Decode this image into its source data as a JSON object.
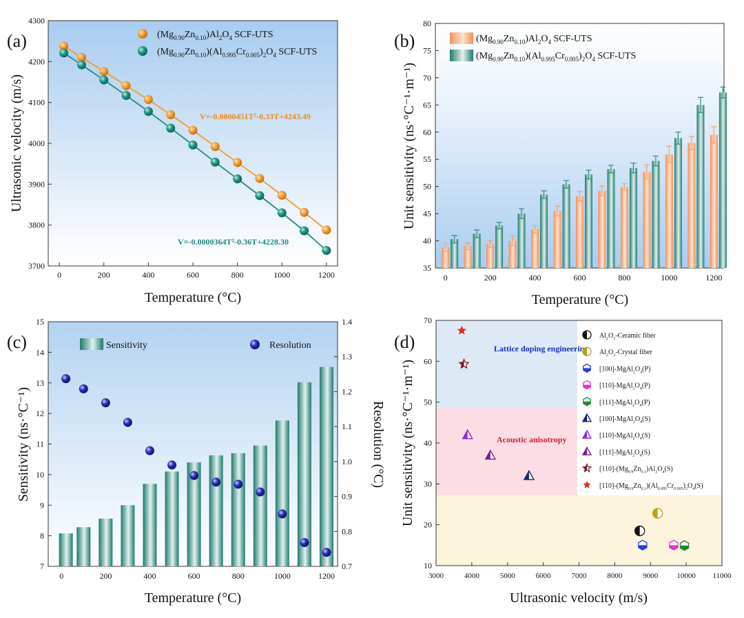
{
  "chart_data": [
    {
      "panel": "(a)",
      "type": "scatter",
      "xlabel": "Temperature (°C)",
      "ylabel": "Ultrasonic velocity (m/s)",
      "xlim": [
        -50,
        1250
      ],
      "ylim": [
        3700,
        4300
      ],
      "xticks": [
        0,
        200,
        400,
        600,
        800,
        1000,
        1200
      ],
      "yticks": [
        3700,
        3800,
        3900,
        4000,
        4100,
        4200,
        4300
      ],
      "legend": "top-right",
      "series": [
        {
          "name_main": "(Mg",
          "name_s1": "0.90",
          "name_m2": "Zn",
          "name_s2": "0.10",
          "name_m3": ")Al",
          "name_s3": "2",
          "name_m4": "O",
          "name_s4": "4",
          "name_m5": " SCF-UTS",
          "color": "#f39a2a",
          "x": [
            20,
            100,
            200,
            300,
            400,
            500,
            600,
            700,
            800,
            900,
            1000,
            1100,
            1200
          ],
          "y": [
            4238,
            4210,
            4176,
            4141,
            4107,
            4070,
            4032,
            3992,
            3953,
            3914,
            3873,
            3831,
            3788
          ],
          "fit": "V=-0.0000451T²-0.33T+4243.49"
        },
        {
          "name_main": "(Mg",
          "name_s1": "0.90",
          "name_m2": "Zn",
          "name_s2": "0.10",
          "name_m3": ")(Al",
          "name_s3": "0.995",
          "name_m4": "Cr",
          "name_s4": "0.005",
          "name_m5": ")",
          "name_s5": "2",
          "name_m6": "O",
          "name_s6": "4",
          "name_m7": " SCF-UTS",
          "color": "#1e8c80",
          "x": [
            20,
            100,
            200,
            300,
            400,
            500,
            600,
            700,
            800,
            900,
            1000,
            1100,
            1200
          ],
          "y": [
            4221,
            4192,
            4155,
            4117,
            4078,
            4037,
            3996,
            3954,
            3913,
            3872,
            3830,
            3786,
            3738
          ],
          "fit": "V=-0.0000364T²-0.36T+4228.30"
        }
      ]
    },
    {
      "panel": "(b)",
      "type": "bar",
      "xlabel": "Temperature (°C)",
      "ylabel": "Unit sensitivity (ns·°C⁻¹·m⁻¹)",
      "ylim": [
        35,
        80
      ],
      "xticks": [
        0,
        200,
        400,
        600,
        800,
        1000,
        1200
      ],
      "yticks": [
        35,
        40,
        45,
        50,
        55,
        60,
        65,
        70,
        75,
        80
      ],
      "legend": "top-left",
      "categories": [
        0,
        100,
        200,
        300,
        400,
        500,
        600,
        700,
        800,
        900,
        1000,
        1100,
        1200
      ],
      "series": [
        {
          "name_main": "(Mg",
          "name_s1": "0.90",
          "name_m2": "Zn",
          "name_s2": "0.10",
          "name_m3": ")Al",
          "name_s3": "2",
          "name_m4": "O",
          "name_s4": "4",
          "name_m5": " SCF-UTS",
          "color": "#f5a26a",
          "values": [
            38.8,
            39.0,
            39.4,
            40.0,
            42.1,
            45.5,
            48.2,
            49.2,
            49.9,
            52.7,
            55.9,
            58.0,
            59.5
          ],
          "errors": [
            0.8,
            0.6,
            0.6,
            0.9,
            0.7,
            0.9,
            0.9,
            0.9,
            0.6,
            1.3,
            1.5,
            1.2,
            1.5
          ]
        },
        {
          "name_main": "(Mg",
          "name_s1": "0.90",
          "name_m2": "Zn",
          "name_s2": "0.10",
          "name_m3": ")(Al",
          "name_s3": "0.995",
          "name_m4": "Cr",
          "name_s4": "0.005",
          "name_m5": ")",
          "name_s5": "2",
          "name_m6": "O",
          "name_s6": "4",
          "name_m7": " SCF-UTS",
          "color": "#2f8b7e",
          "values": [
            40.3,
            41.3,
            42.8,
            45.0,
            48.5,
            50.4,
            52.2,
            53.2,
            53.4,
            54.7,
            58.9,
            65.0,
            67.3
          ],
          "errors": [
            0.7,
            0.7,
            0.6,
            0.9,
            0.7,
            0.7,
            0.8,
            0.7,
            0.9,
            0.9,
            1.1,
            1.4,
            1.0
          ]
        }
      ]
    },
    {
      "panel": "(c)",
      "type": "bar",
      "xlabel": "Temperature (°C)",
      "ylabel": "Sensitivity (ns·°C⁻¹)",
      "y2label": "Resolution (°C)",
      "ylim": [
        7,
        15
      ],
      "y2lim": [
        0.7,
        1.4
      ],
      "xticks": [
        0,
        200,
        400,
        600,
        800,
        1000,
        1200
      ],
      "yticks": [
        7,
        8,
        9,
        10,
        11,
        12,
        13,
        14,
        15
      ],
      "y2ticks": [
        "0.7",
        "0.8",
        "0.9",
        "1.0",
        "1.1",
        "1.2",
        "1.3",
        "1.4"
      ],
      "legend": "top",
      "categories": [
        20,
        100,
        200,
        300,
        400,
        500,
        600,
        700,
        800,
        900,
        1000,
        1100,
        1200
      ],
      "series": [
        {
          "name": "Sensitivity",
          "color": "#2f8b7e",
          "values": [
            8.08,
            8.28,
            8.56,
            9.0,
            9.7,
            10.1,
            10.4,
            10.63,
            10.7,
            10.95,
            11.77,
            13.02,
            13.52
          ]
        },
        {
          "name": "Resolution",
          "color": "#1c1f9e",
          "axis": "right",
          "values": [
            1.237,
            1.208,
            1.168,
            1.112,
            1.031,
            0.99,
            0.96,
            0.941,
            0.935,
            0.913,
            0.85,
            0.768,
            0.74
          ]
        }
      ]
    },
    {
      "panel": "(d)",
      "type": "scatter",
      "xlabel": "Ultrasonic velocity (m/s)",
      "ylabel": "Unit sensitivity (ns·°C⁻¹·m⁻¹)",
      "xlim": [
        3000,
        11000
      ],
      "ylim": [
        10,
        70
      ],
      "xticks": [
        3000,
        4000,
        5000,
        6000,
        7000,
        8000,
        9000,
        10000,
        11000
      ],
      "yticks": [
        10,
        20,
        30,
        40,
        50,
        60,
        70
      ],
      "legend": "right",
      "regions": [
        {
          "label": "Lattice doping engineering",
          "color": "#dde9f5",
          "label_color": "#1a2ec9",
          "ymin": 48.5,
          "ymax": 70,
          "xmax": 6950
        },
        {
          "label": "Acoustic anisotropy",
          "color": "#fbdde3",
          "label_color": "#d3202b",
          "ymin": 27.2,
          "ymax": 48.5,
          "xmax": 6950
        },
        {
          "label": "",
          "color": "#fbf3dc",
          "ymin": 10,
          "ymax": 27.2,
          "xmax": 11000
        }
      ],
      "series": [
        {
          "m": "Al",
          "s1": "2",
          "m2": "O",
          "s2": "3",
          "m3": "-Ceramic fiber",
          "marker": "half-circle",
          "color": "#111111",
          "x": [
            8700
          ],
          "y": [
            18.5
          ]
        },
        {
          "m": "Al",
          "s1": "2",
          "m2": "O",
          "s2": "3",
          "m3": "-Crystal fiber",
          "marker": "half-circle",
          "color": "#b8a21c",
          "x": [
            9200
          ],
          "y": [
            22.8
          ]
        },
        {
          "m": "[100]-MgAl",
          "s1": "2",
          "m2": "O",
          "s2": "4",
          "m3": "(P)",
          "marker": "hexagon",
          "color": "#1f3fe0",
          "x": [
            8780
          ],
          "y": [
            15
          ]
        },
        {
          "m": "[110]-MgAl",
          "s1": "2",
          "m2": "O",
          "s2": "4",
          "m3": "(P)",
          "marker": "hexagon",
          "color": "#e830d8",
          "x": [
            9650
          ],
          "y": [
            15
          ]
        },
        {
          "m": "[111]-MgAl",
          "s1": "2",
          "m2": "O",
          "s2": "4",
          "m3": "(P)",
          "marker": "hexagon",
          "color": "#1d8a2c",
          "x": [
            9950
          ],
          "y": [
            14.9
          ]
        },
        {
          "m": "[100]-MgAl",
          "s1": "2",
          "m2": "O",
          "s2": "4",
          "m3": "(S)",
          "marker": "triangle",
          "color": "#1a237e",
          "x": [
            5600
          ],
          "y": [
            32
          ]
        },
        {
          "m": "[110]-MgAl",
          "s1": "2",
          "m2": "O",
          "s2": "4",
          "m3": "(S)",
          "marker": "triangle",
          "color": "#8a2be2",
          "x": [
            3880
          ],
          "y": [
            42
          ]
        },
        {
          "m": "[111]-MgAl",
          "s1": "2",
          "m2": "O",
          "s2": "4",
          "m3": "(S)",
          "marker": "triangle",
          "color": "#7b1f8f",
          "x": [
            4520
          ],
          "y": [
            37
          ]
        },
        {
          "m": "[110]-(Mg",
          "s1": "0.9",
          "m2": "Zn",
          "s2": "0.1",
          "m3": ")Al",
          "s3": "2",
          "m4": "O",
          "s4": "4",
          "m5": "(S)",
          "marker": "star-half",
          "color": "#7a1a2a",
          "x": [
            3780
          ],
          "y": [
            59.3
          ]
        },
        {
          "m": "[110]-(Mg",
          "s1": "0.9",
          "m2": "Zn",
          "s2": "0.1",
          "m3": ")(Al",
          "s3": "0.995",
          "m4": "Cr",
          "s4": "0.005",
          "m5": ")",
          "s5": "2",
          "m6": "O",
          "s6": "4",
          "m7": "(S)",
          "marker": "star",
          "color": "#e52420",
          "x": [
            3720
          ],
          "y": [
            67.5
          ]
        }
      ]
    }
  ]
}
